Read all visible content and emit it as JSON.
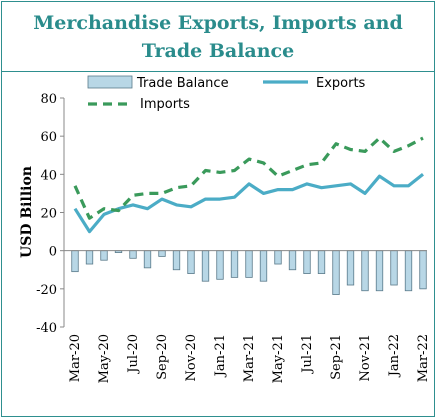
{
  "chart_data": {
    "type": "bar+line",
    "title": "Merchandise Exports, Imports and Trade Balance",
    "ylabel": "USD Billion",
    "xlabel": "",
    "ylim": [
      -40,
      80
    ],
    "yticks": [
      -40,
      -20,
      0,
      20,
      40,
      60,
      80
    ],
    "categories": [
      "Mar-20",
      "Apr-20",
      "May-20",
      "Jun-20",
      "Jul-20",
      "Aug-20",
      "Sep-20",
      "Oct-20",
      "Nov-20",
      "Dec-20",
      "Jan-21",
      "Feb-21",
      "Mar-21",
      "Apr-21",
      "May-21",
      "Jun-21",
      "Jul-21",
      "Aug-21",
      "Sep-21",
      "Oct-21",
      "Nov-21",
      "Dec-21",
      "Jan-22",
      "Feb-22",
      "Mar-22"
    ],
    "x_tick_labels": [
      "Mar-20",
      "May-20",
      "Jul-20",
      "Sep-20",
      "Nov-20",
      "Jan-21",
      "Mar-21",
      "May-21",
      "Jul-21",
      "Sep-21",
      "Nov-21",
      "Jan-22",
      "Mar-22"
    ],
    "legend_position": "top",
    "grid": false,
    "series": [
      {
        "name": "Trade Balance",
        "kind": "bar",
        "color": "#b8d7e6",
        "values": [
          -11,
          -7,
          -5,
          -1,
          -4,
          -9,
          -3,
          -10,
          -12,
          -16,
          -15,
          -14,
          -14,
          -16,
          -7,
          -10,
          -12,
          -12,
          -23,
          -18,
          -21,
          -21,
          -18,
          -21,
          -20
        ]
      },
      {
        "name": "Exports",
        "kind": "line",
        "color": "#4bacc6",
        "values": [
          22,
          10,
          19,
          22,
          24,
          22,
          27,
          24,
          23,
          27,
          27,
          28,
          35,
          30,
          32,
          32,
          35,
          33,
          34,
          35,
          30,
          39,
          34,
          34,
          40
        ]
      },
      {
        "name": "Imports",
        "kind": "dashed-line",
        "color": "#3a9a5b",
        "values": [
          34,
          17,
          22,
          21,
          29,
          30,
          30,
          33,
          34,
          42,
          41,
          42,
          48,
          46,
          39,
          42,
          45,
          46,
          56,
          53,
          52,
          59,
          52,
          55,
          59
        ]
      }
    ]
  }
}
